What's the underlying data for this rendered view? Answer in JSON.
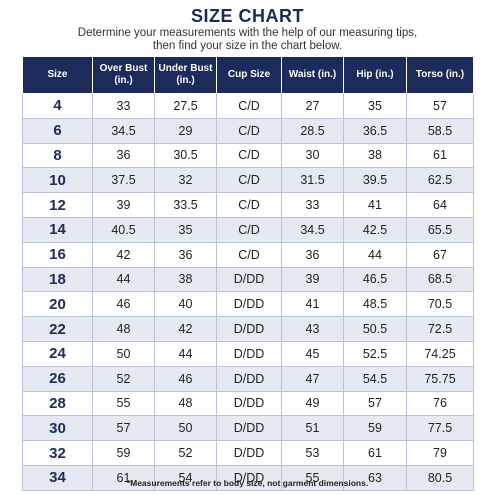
{
  "title": "SIZE CHART",
  "subtitle_line1": "Determine your measurements with the help of our measuring tips,",
  "subtitle_line2": "then find your size in the chart below.",
  "headers": [
    {
      "l1": "Size",
      "l2": ""
    },
    {
      "l1": "Over Bust",
      "l2": "(in.)"
    },
    {
      "l1": "Under Bust",
      "l2": "(in.)"
    },
    {
      "l1": "Cup Size",
      "l2": ""
    },
    {
      "l1": "Waist (in.)",
      "l2": ""
    },
    {
      "l1": "Hip (in.)",
      "l2": ""
    },
    {
      "l1": "Torso (in.)",
      "l2": ""
    }
  ],
  "rows": [
    [
      "4",
      "33",
      "27.5",
      "C/D",
      "27",
      "35",
      "57"
    ],
    [
      "6",
      "34.5",
      "29",
      "C/D",
      "28.5",
      "36.5",
      "58.5"
    ],
    [
      "8",
      "36",
      "30.5",
      "C/D",
      "30",
      "38",
      "61"
    ],
    [
      "10",
      "37.5",
      "32",
      "C/D",
      "31.5",
      "39.5",
      "62.5"
    ],
    [
      "12",
      "39",
      "33.5",
      "C/D",
      "33",
      "41",
      "64"
    ],
    [
      "14",
      "40.5",
      "35",
      "C/D",
      "34.5",
      "42.5",
      "65.5"
    ],
    [
      "16",
      "42",
      "36",
      "C/D",
      "36",
      "44",
      "67"
    ],
    [
      "18",
      "44",
      "38",
      "D/DD",
      "39",
      "46.5",
      "68.5"
    ],
    [
      "20",
      "46",
      "40",
      "D/DD",
      "41",
      "48.5",
      "70.5"
    ],
    [
      "22",
      "48",
      "42",
      "D/DD",
      "43",
      "50.5",
      "72.5"
    ],
    [
      "24",
      "50",
      "44",
      "D/DD",
      "45",
      "52.5",
      "74.25"
    ],
    [
      "26",
      "52",
      "46",
      "D/DD",
      "47",
      "54.5",
      "75.75"
    ],
    [
      "28",
      "55",
      "48",
      "D/DD",
      "49",
      "57",
      "76"
    ],
    [
      "30",
      "57",
      "50",
      "D/DD",
      "51",
      "59",
      "77.5"
    ],
    [
      "32",
      "59",
      "52",
      "D/DD",
      "53",
      "61",
      "79"
    ],
    [
      "34",
      "61",
      "54",
      "D/DD",
      "55",
      "63",
      "80.5"
    ]
  ],
  "footnote": "*Measurements refer to body size, not garment dimensions.",
  "colors": {
    "header_bg": "#1c2b5c",
    "alt_row_bg": "#e4e9f2",
    "size_text": "#1c2b5c"
  }
}
